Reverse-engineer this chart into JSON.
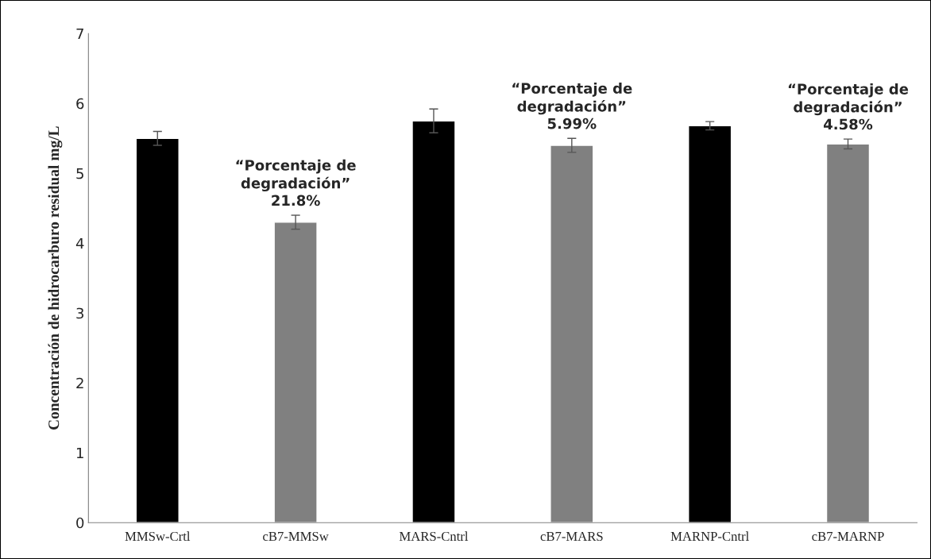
{
  "chart_data": {
    "type": "bar",
    "ylabel": "Concentración de hidrocarburo residual mg/L",
    "categories": [
      "MMSw-Crtl",
      "cB7-MMSw",
      "MARS-Cntrl",
      "cB7-MARS",
      "MARNP-Cntrl",
      "cB7-MARNP"
    ],
    "values": [
      5.5,
      4.3,
      5.75,
      5.4,
      5.68,
      5.42
    ],
    "errors": [
      0.1,
      0.1,
      0.17,
      0.1,
      0.06,
      0.07
    ],
    "colors": [
      "#000000",
      "#808080",
      "#000000",
      "#808080",
      "#000000",
      "#808080"
    ],
    "ylim": [
      0,
      7
    ],
    "yticks": [
      0,
      1,
      2,
      3,
      4,
      5,
      6,
      7
    ],
    "grid": false,
    "annotations": [
      {
        "text": "“Porcentaje de\ndegradación”\n21.8%",
        "x": "cB7-MMSw",
        "y": 4.4
      },
      {
        "text": "“Porcentaje de\ndegradación”\n5.99%",
        "x": "cB7-MARS",
        "y": 5.5
      },
      {
        "text": "“Porcentaje de\ndegradación”\n4.58%",
        "x": "cB7-MARNP",
        "y": 5.49
      }
    ]
  }
}
